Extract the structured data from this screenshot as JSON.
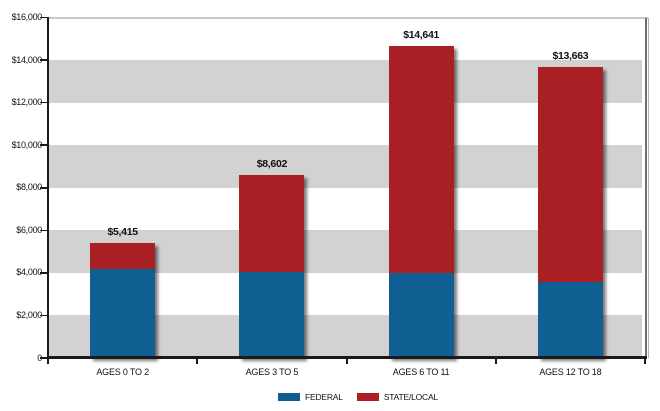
{
  "chart_data": {
    "type": "bar",
    "subtype": "stacked",
    "categories": [
      "AGES 0 TO 2",
      "AGES 3 TO 5",
      "AGES 6 TO 11",
      "AGES 12 TO 18"
    ],
    "series": [
      {
        "name": "FEDERAL",
        "color": "#0f5f93",
        "values": [
          4200,
          4050,
          4000,
          3550
        ]
      },
      {
        "name": "STATE/LOCAL",
        "color": "#a82024",
        "values": [
          1215,
          4552,
          10641,
          10113
        ]
      }
    ],
    "totals": [
      5415,
      8602,
      14641,
      13663
    ],
    "total_labels": [
      "$5,415",
      "$8,602",
      "$14,641",
      "$13,663"
    ],
    "ylim": [
      0,
      16000
    ],
    "ytick_step": 2000,
    "ytick_labels": [
      "0",
      "$2,000",
      "$4,000",
      "$6,000",
      "$8,000",
      "$10,000",
      "$12,000",
      "$14,000",
      "$16,000"
    ],
    "xlabel": "",
    "ylabel": "",
    "grid": "alternating-horizontal-bands",
    "legend_position": "bottom-center",
    "colors": {
      "band": "#d2d2d2",
      "axis": "#1a1a1a",
      "top_gridline": "#c9c9c9",
      "right_border_dark": "#6e6e6e",
      "right_border_light": "#b3b3b3",
      "text": "#111111"
    }
  }
}
